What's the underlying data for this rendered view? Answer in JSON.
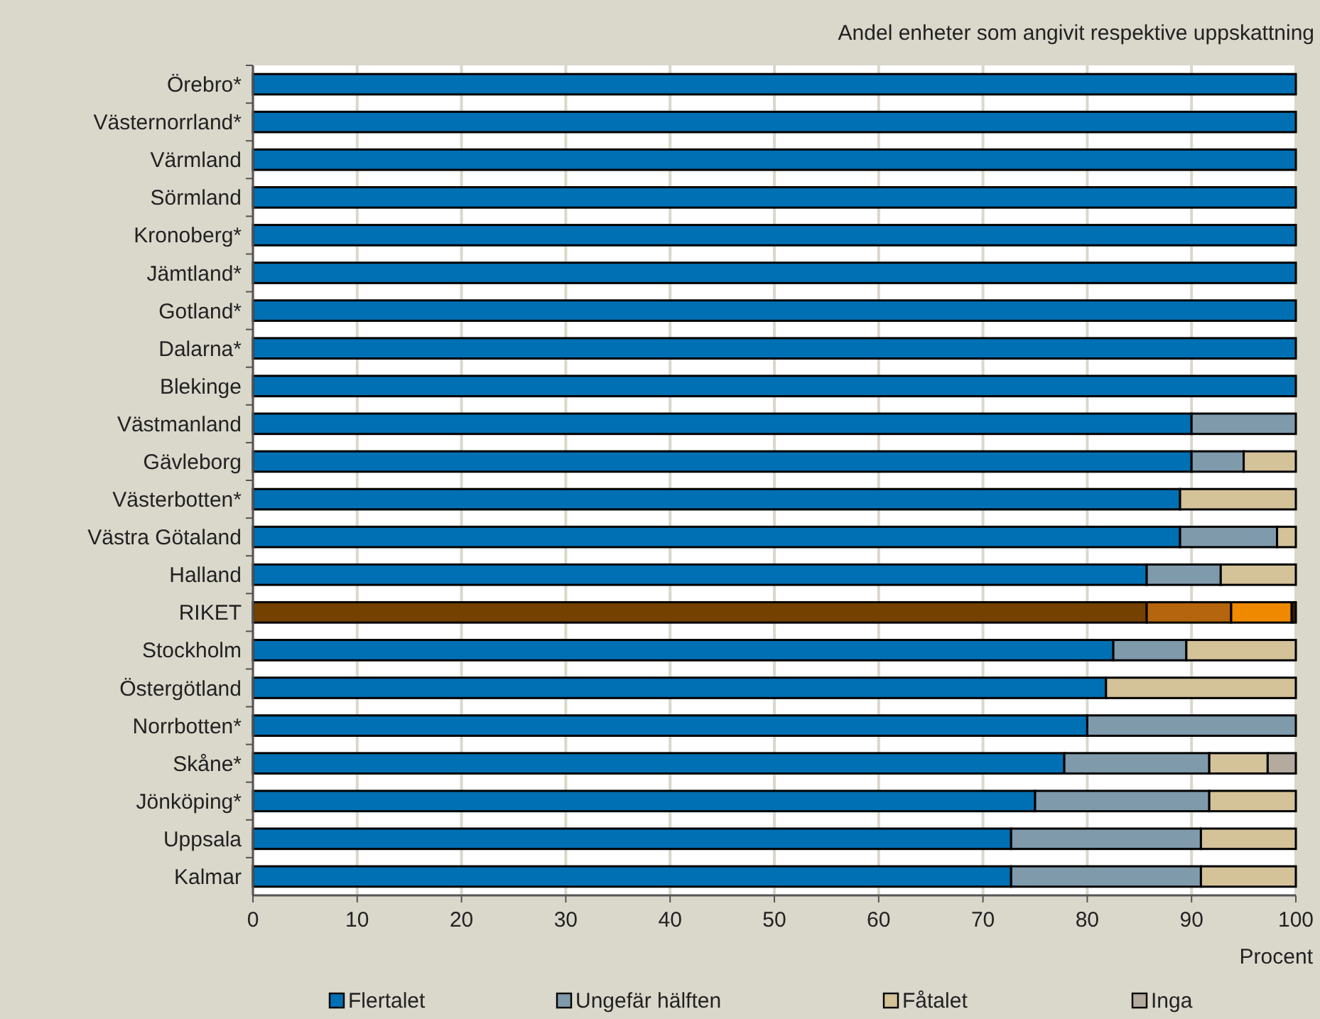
{
  "chart_data": {
    "type": "bar",
    "orientation": "horizontal",
    "stacked": true,
    "title": "Andel enheter som angivit respektive uppskattning",
    "xlabel": "Procent",
    "categories": [
      "Örebro*",
      "Västernorrland*",
      "Värmland",
      "Sörmland",
      "Kronoberg*",
      "Jämtland*",
      "Gotland*",
      "Dalarna*",
      "Blekinge",
      "Västmanland",
      "Gävleborg",
      "Västerbotten*",
      "Västra Götaland",
      "Halland",
      "RIKET",
      "Stockholm",
      "Östergötland",
      "Norrbotten*",
      "Skåne*",
      "Jönköping*",
      "Uppsala",
      "Kalmar"
    ],
    "series": [
      {
        "name": "Flertalet",
        "color": "#0070b4",
        "colors": [
          "#0070b4",
          "#0070b4",
          "#0070b4",
          "#0070b4",
          "#0070b4",
          "#0070b4",
          "#0070b4",
          "#0070b4",
          "#0070b4",
          "#0070b4",
          "#0070b4",
          "#0070b4",
          "#0070b4",
          "#0070b4",
          "#754100",
          "#0070b4",
          "#0070b4",
          "#0070b4",
          "#0070b4",
          "#0070b4",
          "#0070b4",
          "#0070b4"
        ],
        "values": [
          100,
          100,
          100,
          100,
          100,
          100,
          100,
          100,
          100,
          90,
          90,
          88.9,
          88.9,
          85.7,
          85.7,
          82.5,
          81.8,
          80,
          77.8,
          75,
          72.7,
          72.7
        ]
      },
      {
        "name": "Ungefär hälften",
        "color": "#7f9aab",
        "colors": [
          null,
          null,
          null,
          null,
          null,
          null,
          null,
          null,
          null,
          "#7f9aab",
          "#7f9aab",
          null,
          "#7f9aab",
          "#7f9aab",
          "#b5650d",
          "#7f9aab",
          null,
          "#7f9aab",
          "#7f9aab",
          "#7f9aab",
          "#7f9aab",
          "#7f9aab"
        ],
        "values": [
          null,
          null,
          null,
          null,
          null,
          null,
          null,
          null,
          null,
          10,
          5,
          null,
          9.3,
          7.1,
          8.1,
          7,
          null,
          20,
          13.9,
          16.7,
          18.2,
          18.2
        ]
      },
      {
        "name": "Fåtalet",
        "color": "#d4c299",
        "colors": [
          null,
          null,
          null,
          null,
          null,
          null,
          null,
          null,
          null,
          null,
          "#d4c299",
          "#d4c299",
          "#d4c299",
          "#d4c299",
          "#ef8a00",
          "#d4c299",
          "#d4c299",
          null,
          "#d4c299",
          "#d4c299",
          "#d4c299",
          "#d4c299"
        ],
        "values": [
          null,
          null,
          null,
          null,
          null,
          null,
          null,
          null,
          null,
          null,
          5,
          11.1,
          1.8,
          7.2,
          5.8,
          10.5,
          18.2,
          null,
          5.6,
          8.3,
          9.1,
          9.1
        ]
      },
      {
        "name": "Inga",
        "color": "#b5aa9e",
        "colors": [
          null,
          null,
          null,
          null,
          null,
          null,
          null,
          null,
          null,
          null,
          null,
          null,
          null,
          null,
          "#3a2000",
          null,
          null,
          null,
          "#b5aa9e",
          null,
          null,
          null
        ],
        "values": [
          null,
          null,
          null,
          null,
          null,
          null,
          null,
          null,
          null,
          null,
          null,
          null,
          null,
          null,
          0.4,
          null,
          null,
          null,
          2.7,
          null,
          null,
          null
        ]
      }
    ],
    "xlim": [
      0,
      100
    ],
    "xticks": [
      0,
      10,
      20,
      30,
      40,
      50,
      60,
      70,
      80,
      90,
      100
    ],
    "grid": "x",
    "legend": "bottom"
  }
}
